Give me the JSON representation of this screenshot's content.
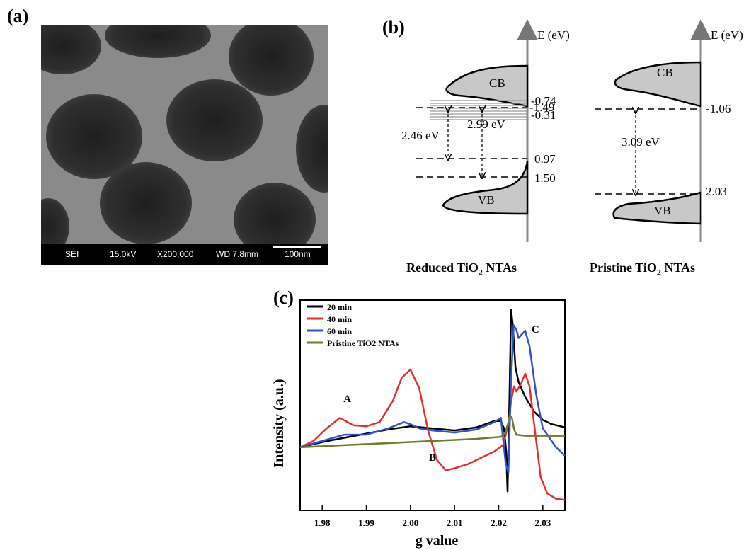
{
  "panel_a": {
    "label": "(a)",
    "info_bar": {
      "mode": "SEI",
      "voltage": "15.0kV",
      "magnification": "X200,000",
      "working_distance": "WD 7.8mm",
      "scale": "100nm"
    }
  },
  "panel_b": {
    "label": "(b)",
    "reduced": {
      "axis_label": "E (eV)",
      "cb": "CB",
      "vb": "VB",
      "levels": [
        "-1.49",
        "-0.74",
        "-0.31",
        "0.97",
        "1.50"
      ],
      "gap_outer": "2.46 eV",
      "gap_inner": "2.99 eV",
      "caption_prefix": "Reduced TiO",
      "caption_sub": "2",
      "caption_suffix": " NTAs"
    },
    "pristine": {
      "axis_label": "E (eV)",
      "cb": "CB",
      "vb": "VB",
      "levels": [
        "-1.06",
        "2.03"
      ],
      "gap": "3.09 eV",
      "caption_prefix": "Pristine TiO",
      "caption_sub": "2",
      "caption_suffix": " NTAs"
    }
  },
  "panel_c": {
    "label": "(c)"
  },
  "chart_data": {
    "type": "line",
    "xlabel": "g value",
    "ylabel": "Intensity (a.u.)",
    "xlim": [
      1.975,
      2.035
    ],
    "ylim": [
      0,
      1
    ],
    "xticks": [
      "1.98",
      "1.99",
      "2.00",
      "2.01",
      "2.02",
      "2.03"
    ],
    "annotations": [
      {
        "text": "A",
        "x": 1.9857,
        "y": 0.515
      },
      {
        "text": "B",
        "x": 2.005,
        "y": 0.235
      },
      {
        "text": "C",
        "x": 2.0283,
        "y": 0.845
      }
    ],
    "legend_position": "top-left",
    "series": [
      {
        "name": "20 min",
        "color": "#000000",
        "x": [
          1.975,
          1.98,
          1.985,
          1.99,
          1.995,
          2.0,
          2.005,
          2.01,
          2.015,
          2.019,
          2.0205,
          2.0212,
          2.0217,
          2.022,
          2.0224,
          2.0228,
          2.0232,
          2.0238,
          2.0245,
          2.026,
          2.028,
          2.03,
          2.032,
          2.035
        ],
        "y": [
          0.3,
          0.325,
          0.345,
          0.365,
          0.385,
          0.4,
          0.39,
          0.38,
          0.395,
          0.425,
          0.425,
          0.39,
          0.28,
          0.09,
          0.5,
          0.955,
          0.88,
          0.68,
          0.61,
          0.54,
          0.47,
          0.43,
          0.41,
          0.395
        ]
      },
      {
        "name": "40 min",
        "color": "#e8302a",
        "x": [
          1.975,
          1.978,
          1.981,
          1.984,
          1.987,
          1.99,
          1.993,
          1.996,
          1.998,
          2.0,
          2.002,
          2.004,
          2.006,
          2.008,
          2.01,
          2.013,
          2.016,
          2.019,
          2.021,
          2.0223,
          2.0228,
          2.0235,
          2.024,
          2.025,
          2.026,
          2.027,
          2.0285,
          2.0295,
          2.031,
          2.033,
          2.035
        ],
        "y": [
          0.3,
          0.33,
          0.39,
          0.44,
          0.405,
          0.4,
          0.42,
          0.52,
          0.63,
          0.67,
          0.58,
          0.38,
          0.24,
          0.19,
          0.2,
          0.22,
          0.25,
          0.28,
          0.31,
          0.42,
          0.52,
          0.59,
          0.565,
          0.6,
          0.65,
          0.59,
          0.33,
          0.16,
          0.08,
          0.055,
          0.05
        ]
      },
      {
        "name": "60 min",
        "color": "#2e54c8",
        "x": [
          1.975,
          1.98,
          1.985,
          1.99,
          1.995,
          1.9985,
          2.0,
          2.002,
          2.005,
          2.01,
          2.015,
          2.019,
          2.0205,
          2.021,
          2.0216,
          2.0222,
          2.0228,
          2.0234,
          2.024,
          2.0245,
          2.026,
          2.027,
          2.0285,
          2.03,
          2.033,
          2.035
        ],
        "y": [
          0.3,
          0.33,
          0.36,
          0.36,
          0.39,
          0.42,
          0.41,
          0.39,
          0.38,
          0.37,
          0.385,
          0.42,
          0.44,
          0.34,
          0.22,
          0.18,
          0.62,
          0.88,
          0.86,
          0.82,
          0.855,
          0.78,
          0.55,
          0.39,
          0.3,
          0.26
        ]
      },
      {
        "name": "Pristine TiO2 NTAs",
        "color": "#6b7d2e",
        "x": [
          1.975,
          1.985,
          1.995,
          2.005,
          2.015,
          2.0205,
          2.0215,
          2.0222,
          2.0226,
          2.023,
          2.0235,
          2.024,
          2.026,
          2.03,
          2.035
        ],
        "y": [
          0.3,
          0.31,
          0.32,
          0.33,
          0.34,
          0.35,
          0.37,
          0.42,
          0.45,
          0.44,
          0.385,
          0.36,
          0.355,
          0.355,
          0.355
        ]
      }
    ]
  }
}
